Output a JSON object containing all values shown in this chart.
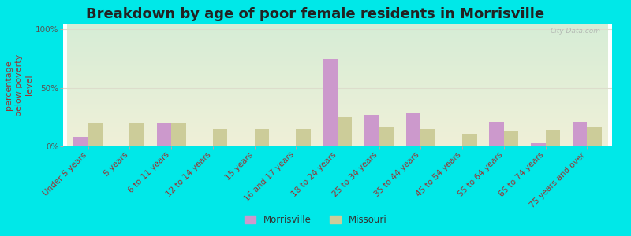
{
  "title": "Breakdown by age of poor female residents in Morrisville",
  "ylabel": "percentage\nbelow poverty\nlevel",
  "categories": [
    "Under 5 years",
    "5 years",
    "6 to 11 years",
    "12 to 14 years",
    "15 years",
    "16 and 17 years",
    "18 to 24 years",
    "25 to 34 years",
    "35 to 44 years",
    "45 to 54 years",
    "55 to 64 years",
    "65 to 74 years",
    "75 years and over"
  ],
  "morrisville": [
    8,
    0,
    20,
    0,
    0,
    0,
    75,
    27,
    28,
    0,
    21,
    3,
    21
  ],
  "missouri": [
    20,
    20,
    20,
    15,
    15,
    15,
    25,
    17,
    15,
    11,
    13,
    14,
    17
  ],
  "morrisville_color": "#cc99cc",
  "missouri_color": "#cccc99",
  "bg_top_color": "#d6edd6",
  "bg_bottom_color": "#f0f0d8",
  "outer_bg": "#00e8e8",
  "yticks": [
    0,
    50,
    100
  ],
  "ylim": [
    0,
    105
  ],
  "bar_width": 0.35,
  "title_fontsize": 13,
  "label_fontsize": 7.5,
  "ylabel_fontsize": 8,
  "watermark": "City-Data.com"
}
